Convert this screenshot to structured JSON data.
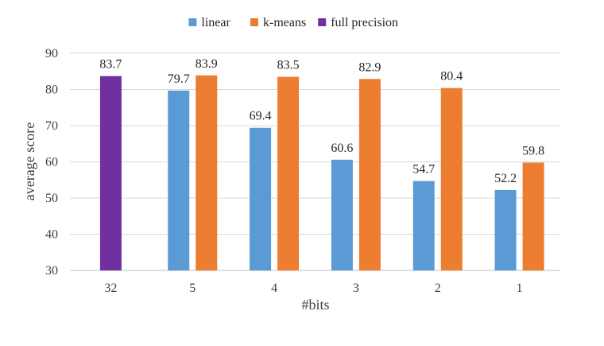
{
  "chart_data": {
    "type": "bar",
    "categories": [
      "32",
      "5",
      "4",
      "3",
      "2",
      "1"
    ],
    "series": [
      {
        "name": "linear",
        "color": "#5B9BD5",
        "values": [
          null,
          79.7,
          69.4,
          60.6,
          54.7,
          52.2
        ]
      },
      {
        "name": "k-means",
        "color": "#ED7D31",
        "values": [
          null,
          83.9,
          83.5,
          82.9,
          80.4,
          59.8
        ]
      },
      {
        "name": "full precision",
        "color": "#7030A0",
        "values": [
          83.7,
          null,
          null,
          null,
          null,
          null
        ]
      }
    ],
    "xlabel": "#bits",
    "ylabel": "average score",
    "ylim": [
      30,
      90
    ],
    "yticks": [
      30,
      40,
      50,
      60,
      70,
      80,
      90
    ],
    "grid": "horizontal",
    "legend_position": "top"
  }
}
